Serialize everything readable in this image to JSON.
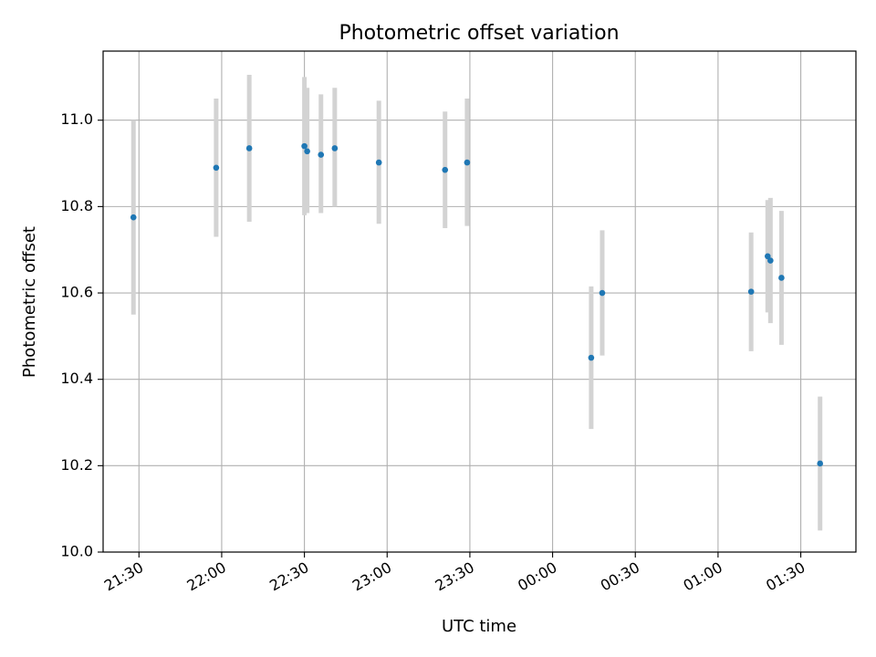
{
  "chart_data": {
    "type": "scatter",
    "title": "Photometric offset variation",
    "xlabel": "UTC time",
    "ylabel": "Photometric offset",
    "grid": true,
    "x_axis": {
      "kind": "time",
      "range": [
        "21:17",
        "01:50"
      ],
      "ticks": [
        {
          "t": "21:30",
          "label": "21:30"
        },
        {
          "t": "22:00",
          "label": "22:00"
        },
        {
          "t": "22:30",
          "label": "22:30"
        },
        {
          "t": "23:00",
          "label": "23:00"
        },
        {
          "t": "23:30",
          "label": "23:30"
        },
        {
          "t": "00:00",
          "label": "00:00"
        },
        {
          "t": "00:30",
          "label": "00:30"
        },
        {
          "t": "01:00",
          "label": "01:00"
        },
        {
          "t": "01:30",
          "label": "01:30"
        }
      ]
    },
    "y_axis": {
      "range": [
        10.0,
        11.16
      ],
      "ticks": [
        10.0,
        10.2,
        10.4,
        10.6,
        10.8,
        11.0
      ],
      "tick_labels": [
        "10.0",
        "10.2",
        "10.4",
        "10.6",
        "10.8",
        "11.0"
      ]
    },
    "colors": {
      "marker": "#1f77b4",
      "errorbar": "#d3d3d3",
      "grid": "#b0b0b0"
    },
    "points": [
      {
        "t": "21:28",
        "y": 10.775,
        "lo": 10.55,
        "hi": 11.0
      },
      {
        "t": "21:58",
        "y": 10.89,
        "lo": 10.73,
        "hi": 11.05
      },
      {
        "t": "22:10",
        "y": 10.935,
        "lo": 10.765,
        "hi": 11.105
      },
      {
        "t": "22:30",
        "y": 10.94,
        "lo": 10.78,
        "hi": 11.1
      },
      {
        "t": "22:31",
        "y": 10.928,
        "lo": 10.785,
        "hi": 11.075
      },
      {
        "t": "22:36",
        "y": 10.92,
        "lo": 10.785,
        "hi": 11.06
      },
      {
        "t": "22:41",
        "y": 10.935,
        "lo": 10.8,
        "hi": 11.075
      },
      {
        "t": "22:57",
        "y": 10.902,
        "lo": 10.76,
        "hi": 11.045
      },
      {
        "t": "23:21",
        "y": 10.885,
        "lo": 10.75,
        "hi": 11.02
      },
      {
        "t": "23:29",
        "y": 10.902,
        "lo": 10.755,
        "hi": 11.05
      },
      {
        "t": "00:14",
        "y": 10.45,
        "lo": 10.285,
        "hi": 10.615
      },
      {
        "t": "00:18",
        "y": 10.6,
        "lo": 10.455,
        "hi": 10.745
      },
      {
        "t": "01:12",
        "y": 10.603,
        "lo": 10.465,
        "hi": 10.74
      },
      {
        "t": "01:18",
        "y": 10.685,
        "lo": 10.555,
        "hi": 10.815
      },
      {
        "t": "01:19",
        "y": 10.675,
        "lo": 10.53,
        "hi": 10.82
      },
      {
        "t": "01:23",
        "y": 10.635,
        "lo": 10.48,
        "hi": 10.79
      },
      {
        "t": "01:37",
        "y": 10.205,
        "lo": 10.05,
        "hi": 10.36
      }
    ]
  }
}
